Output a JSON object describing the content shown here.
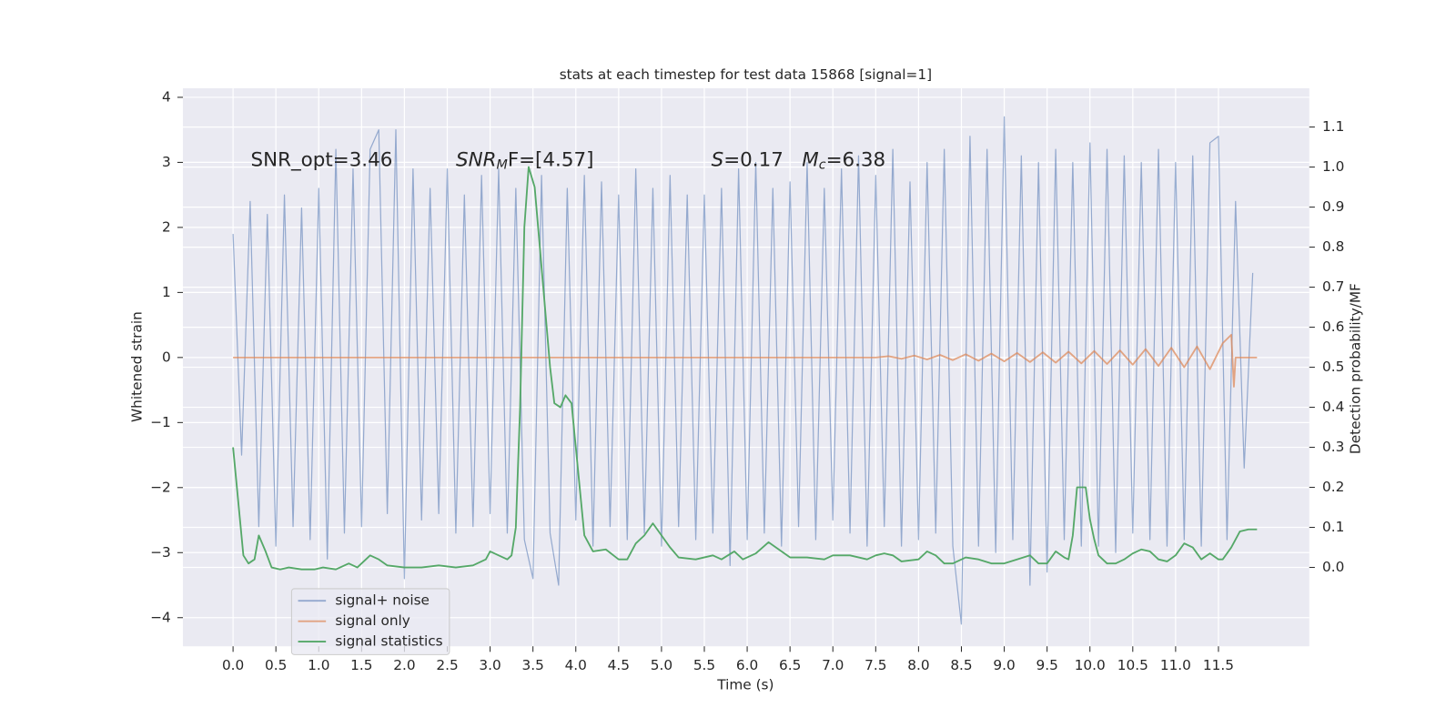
{
  "chart_data": {
    "type": "line",
    "title": "stats at each timestep for test data 15868 [signal=1]",
    "xlabel": "Time (s)",
    "ylabel": "Whitened strain",
    "y2label": "Detection probability/MF",
    "annotations": [
      [
        {
          "text": "SNR_opt=3.46",
          "style": "normal"
        }
      ],
      [
        {
          "text": "SNR",
          "style": "italic"
        },
        {
          "text": "M",
          "style": "sub"
        },
        {
          "text": "F=[4.57]",
          "style": "normal"
        }
      ],
      [
        {
          "text": "S",
          "style": "italic"
        },
        {
          "text": "=0.17   ",
          "style": "normal"
        },
        {
          "text": "M",
          "style": "italic"
        },
        {
          "text": "c",
          "style": "sub"
        },
        {
          "text": "=6.38",
          "style": "normal"
        }
      ]
    ],
    "xlim": [
      -0.585,
      12.56
    ],
    "ylim": [
      -4.44,
      4.14
    ],
    "y2lim": [
      -0.197,
      1.197
    ],
    "xticks": [
      {
        "value": 0,
        "label": "0.0"
      },
      {
        "value": 0.5,
        "label": "0.5"
      },
      {
        "value": 1,
        "label": "1.0"
      },
      {
        "value": 1.5,
        "label": "1.5"
      },
      {
        "value": 2,
        "label": "2.0"
      },
      {
        "value": 2.5,
        "label": "2.5"
      },
      {
        "value": 3,
        "label": "3.0"
      },
      {
        "value": 3.5,
        "label": "3.5"
      },
      {
        "value": 4,
        "label": "4.0"
      },
      {
        "value": 4.5,
        "label": "4.5"
      },
      {
        "value": 5,
        "label": "5.0"
      },
      {
        "value": 5.5,
        "label": "5.5"
      },
      {
        "value": 6,
        "label": "6.0"
      },
      {
        "value": 6.5,
        "label": "6.5"
      },
      {
        "value": 7,
        "label": "7.0"
      },
      {
        "value": 7.5,
        "label": "7.5"
      },
      {
        "value": 8,
        "label": "8.0"
      },
      {
        "value": 8.5,
        "label": "8.5"
      },
      {
        "value": 9,
        "label": "9.0"
      },
      {
        "value": 9.5,
        "label": "9.5"
      },
      {
        "value": 10,
        "label": "10.0"
      },
      {
        "value": 10.5,
        "label": "10.5"
      },
      {
        "value": 11,
        "label": "11.0"
      },
      {
        "value": 11.5,
        "label": "11.5"
      }
    ],
    "yticks": [
      {
        "value": -4,
        "label": "−4"
      },
      {
        "value": -3,
        "label": "−3"
      },
      {
        "value": -2,
        "label": "−2"
      },
      {
        "value": -1,
        "label": "−1"
      },
      0,
      1,
      2,
      3,
      4
    ],
    "y2ticks": [
      {
        "value": 0,
        "label": "0.0"
      },
      {
        "value": 0.1,
        "label": "0.1"
      },
      {
        "value": 0.2,
        "label": "0.2"
      },
      {
        "value": 0.3,
        "label": "0.3"
      },
      {
        "value": 0.4,
        "label": "0.4"
      },
      {
        "value": 0.5,
        "label": "0.5"
      },
      {
        "value": 0.6,
        "label": "0.6"
      },
      {
        "value": 0.7,
        "label": "0.7"
      },
      {
        "value": 0.8,
        "label": "0.8"
      },
      {
        "value": 0.9,
        "label": "0.9"
      },
      {
        "value": 1,
        "label": "1.0"
      },
      {
        "value": 1.1,
        "label": "1.1"
      }
    ],
    "grid": true,
    "legend": "lower left",
    "series": [
      {
        "name": "signal+ noise",
        "color": "#4c72b0",
        "x": [
          0,
          0.1,
          0.2,
          0.3,
          0.4,
          0.5,
          0.6,
          0.7,
          0.8,
          0.9,
          1,
          1.1,
          1.2,
          1.3,
          1.4,
          1.5,
          1.6,
          1.7,
          1.8,
          1.9,
          2,
          2.1,
          2.2,
          2.3,
          2.4,
          2.5,
          2.6,
          2.7,
          2.8,
          2.9,
          3,
          3.1,
          3.2,
          3.3,
          3.4,
          3.5,
          3.6,
          3.7,
          3.8,
          3.9,
          4,
          4.1,
          4.2,
          4.3,
          4.4,
          4.5,
          4.6,
          4.7,
          4.8,
          4.9,
          5,
          5.1,
          5.2,
          5.3,
          5.4,
          5.5,
          5.6,
          5.7,
          5.8,
          5.9,
          6,
          6.1,
          6.2,
          6.3,
          6.4,
          6.5,
          6.6,
          6.7,
          6.8,
          6.9,
          7,
          7.1,
          7.2,
          7.3,
          7.4,
          7.5,
          7.6,
          7.7,
          7.8,
          7.9,
          8,
          8.1,
          8.2,
          8.3,
          8.4,
          8.5,
          8.6,
          8.7,
          8.8,
          8.9,
          9,
          9.1,
          9.2,
          9.3,
          9.4,
          9.5,
          9.6,
          9.7,
          9.8,
          9.9,
          10,
          10.1,
          10.2,
          10.3,
          10.4,
          10.5,
          10.6,
          10.7,
          10.8,
          10.9,
          11,
          11.1,
          11.2,
          11.3,
          11.4,
          11.5,
          11.6,
          11.7,
          11.8,
          11.9
        ],
        "values": [
          1.9,
          -1.5,
          2.4,
          -2.6,
          2.2,
          -2.9,
          2.5,
          -2.6,
          2.3,
          -2.8,
          2.6,
          -3.1,
          3.2,
          -2.7,
          2.9,
          -2.6,
          3.2,
          3.5,
          -2.4,
          3.5,
          -3.4,
          2.9,
          -2.5,
          2.6,
          -2.4,
          2.9,
          -2.7,
          2.5,
          -2.6,
          2.8,
          -2.4,
          2.9,
          -2.7,
          2.6,
          -2.8,
          -3.4,
          2.8,
          -2.7,
          -3.5,
          2.6,
          -2.5,
          2.8,
          -2.9,
          2.7,
          -2.6,
          2.5,
          -2.8,
          2.9,
          -2.7,
          2.6,
          -2.9,
          2.8,
          -2.6,
          2.5,
          -2.8,
          2.5,
          -2.7,
          2.6,
          -3.2,
          2.9,
          -2.8,
          3.0,
          -2.7,
          2.6,
          -2.9,
          2.7,
          -2.6,
          3.0,
          -2.8,
          2.6,
          -2.5,
          2.9,
          -2.7,
          3.1,
          -2.9,
          2.8,
          -2.6,
          3.2,
          -2.9,
          2.7,
          -2.8,
          3.0,
          -2.7,
          3.2,
          -2.9,
          -4.1,
          3.4,
          -2.9,
          3.2,
          -3.0,
          3.7,
          -2.8,
          3.1,
          -3.5,
          3.0,
          -3.3,
          3.2,
          -2.8,
          3.0,
          -2.9,
          3.3,
          -2.9,
          3.2,
          -3.0,
          3.1,
          -2.7,
          3.0,
          -2.8,
          3.2,
          -2.9,
          3.0,
          -2.8,
          3.1,
          -2.9,
          3.3,
          3.4,
          -2.8,
          2.4,
          -1.7,
          1.3
        ]
      },
      {
        "name": "signal only",
        "color": "#dd8452",
        "x": [
          0,
          7.5,
          7.65,
          7.8,
          7.95,
          8.1,
          8.25,
          8.4,
          8.55,
          8.7,
          8.85,
          9.0,
          9.15,
          9.3,
          9.45,
          9.6,
          9.75,
          9.9,
          10.05,
          10.2,
          10.35,
          10.5,
          10.65,
          10.8,
          10.95,
          11.1,
          11.25,
          11.4,
          11.55,
          11.65,
          11.68,
          11.7,
          11.95
        ],
        "values": [
          0,
          0,
          0.02,
          -0.02,
          0.03,
          -0.03,
          0.04,
          -0.04,
          0.05,
          -0.05,
          0.06,
          -0.06,
          0.07,
          -0.07,
          0.08,
          -0.08,
          0.09,
          -0.09,
          0.1,
          -0.1,
          0.11,
          -0.11,
          0.13,
          -0.13,
          0.15,
          -0.15,
          0.17,
          -0.18,
          0.22,
          0.35,
          -0.45,
          0,
          0
        ]
      },
      {
        "name": "signal statistics",
        "color": "#55a868",
        "axis": "y2",
        "x": [
          0,
          0.12,
          0.18,
          0.25,
          0.3,
          0.38,
          0.45,
          0.55,
          0.65,
          0.8,
          0.95,
          1.05,
          1.2,
          1.35,
          1.45,
          1.6,
          1.7,
          1.8,
          2.0,
          2.2,
          2.4,
          2.6,
          2.8,
          2.95,
          3.0,
          3.1,
          3.2,
          3.25,
          3.3,
          3.35,
          3.4,
          3.45,
          3.52,
          3.6,
          3.7,
          3.75,
          3.82,
          3.88,
          3.95,
          4.0,
          4.1,
          4.2,
          4.35,
          4.5,
          4.6,
          4.7,
          4.8,
          4.9,
          5.0,
          5.1,
          5.2,
          5.4,
          5.6,
          5.7,
          5.85,
          5.95,
          6.1,
          6.25,
          6.4,
          6.5,
          6.7,
          6.9,
          7.0,
          7.2,
          7.4,
          7.5,
          7.6,
          7.7,
          7.8,
          8.0,
          8.1,
          8.2,
          8.3,
          8.4,
          8.55,
          8.7,
          8.85,
          9.0,
          9.15,
          9.3,
          9.4,
          9.5,
          9.6,
          9.7,
          9.75,
          9.8,
          9.85,
          9.95,
          10.0,
          10.05,
          10.1,
          10.2,
          10.3,
          10.4,
          10.5,
          10.6,
          10.7,
          10.8,
          10.9,
          11.0,
          11.1,
          11.2,
          11.3,
          11.4,
          11.5,
          11.55,
          11.65,
          11.75,
          11.85,
          11.95
        ],
        "values": [
          0.3,
          0.03,
          0.01,
          0.02,
          0.08,
          0.04,
          0.0,
          -0.005,
          0.0,
          -0.005,
          -0.005,
          0.0,
          -0.005,
          0.01,
          0.0,
          0.03,
          0.02,
          0.005,
          0.0,
          0.0,
          0.005,
          0.0,
          0.005,
          0.02,
          0.04,
          0.03,
          0.02,
          0.03,
          0.1,
          0.4,
          0.85,
          1.0,
          0.95,
          0.75,
          0.5,
          0.41,
          0.4,
          0.43,
          0.41,
          0.3,
          0.08,
          0.04,
          0.045,
          0.02,
          0.02,
          0.06,
          0.08,
          0.11,
          0.08,
          0.05,
          0.025,
          0.02,
          0.03,
          0.02,
          0.04,
          0.02,
          0.035,
          0.063,
          0.04,
          0.025,
          0.025,
          0.02,
          0.03,
          0.03,
          0.02,
          0.03,
          0.035,
          0.03,
          0.015,
          0.02,
          0.04,
          0.03,
          0.01,
          0.01,
          0.025,
          0.02,
          0.01,
          0.01,
          0.02,
          0.03,
          0.01,
          0.01,
          0.04,
          0.025,
          0.02,
          0.08,
          0.2,
          0.2,
          0.12,
          0.07,
          0.03,
          0.01,
          0.01,
          0.02,
          0.035,
          0.045,
          0.04,
          0.02,
          0.015,
          0.03,
          0.06,
          0.05,
          0.02,
          0.035,
          0.02,
          0.02,
          0.05,
          0.09,
          0.095,
          0.095
        ]
      }
    ]
  }
}
